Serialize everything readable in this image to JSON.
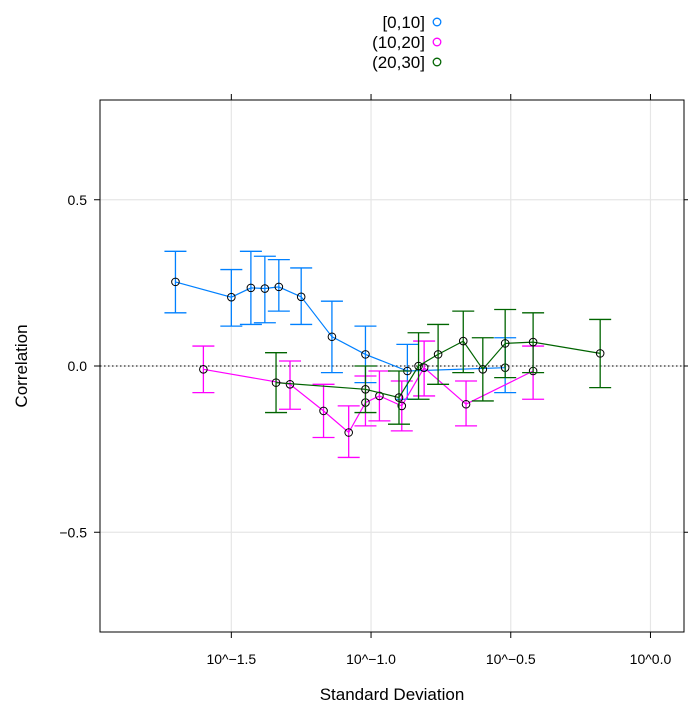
{
  "chart_data": {
    "type": "line",
    "title": "",
    "xlabel": "Standard Deviation",
    "ylabel": "Correlation",
    "x_scale": "log10",
    "xlim": [
      -1.97,
      0.12
    ],
    "ylim": [
      -0.8,
      0.8
    ],
    "x_ticks": [
      {
        "value": -1.5,
        "label": "10^−1.5"
      },
      {
        "value": -1.0,
        "label": "10^−1.0"
      },
      {
        "value": -0.5,
        "label": "10^−0.5"
      },
      {
        "value": 0.0,
        "label": "10^0.0"
      }
    ],
    "y_ticks": [
      {
        "value": -0.5,
        "label": "−0.5"
      },
      {
        "value": 0.0,
        "label": "0.0"
      },
      {
        "value": 0.5,
        "label": "0.5"
      }
    ],
    "grid": true,
    "reference_line": {
      "y": 0.0,
      "style": "dotted"
    },
    "legend": {
      "placement": "top-center",
      "marker": "open-circle"
    },
    "series": [
      {
        "name": "[0,10]",
        "color": "#0080ff",
        "points": [
          {
            "x": -1.7,
            "y": 0.253,
            "lo": 0.16,
            "hi": 0.345
          },
          {
            "x": -1.5,
            "y": 0.207,
            "lo": 0.12,
            "hi": 0.29
          },
          {
            "x": -1.43,
            "y": 0.235,
            "lo": 0.125,
            "hi": 0.345
          },
          {
            "x": -1.38,
            "y": 0.233,
            "lo": 0.13,
            "hi": 0.33
          },
          {
            "x": -1.33,
            "y": 0.238,
            "lo": 0.165,
            "hi": 0.32
          },
          {
            "x": -1.25,
            "y": 0.208,
            "lo": 0.125,
            "hi": 0.295
          },
          {
            "x": -1.14,
            "y": 0.088,
            "lo": -0.02,
            "hi": 0.195
          },
          {
            "x": -1.02,
            "y": 0.035,
            "lo": -0.05,
            "hi": 0.12
          },
          {
            "x": -0.87,
            "y": -0.015,
            "lo": -0.1,
            "hi": 0.065
          },
          {
            "x": -0.52,
            "y": -0.005,
            "lo": -0.08,
            "hi": 0.085
          }
        ]
      },
      {
        "name": "(10,20]",
        "color": "#ff00ff",
        "points": [
          {
            "x": -1.6,
            "y": -0.01,
            "lo": -0.08,
            "hi": 0.06
          },
          {
            "x": -1.29,
            "y": -0.055,
            "lo": -0.13,
            "hi": 0.015
          },
          {
            "x": -1.17,
            "y": -0.135,
            "lo": -0.215,
            "hi": -0.055
          },
          {
            "x": -1.08,
            "y": -0.2,
            "lo": -0.275,
            "hi": -0.12
          },
          {
            "x": -1.02,
            "y": -0.11,
            "lo": -0.18,
            "hi": -0.03
          },
          {
            "x": -0.97,
            "y": -0.09,
            "lo": -0.165,
            "hi": -0.015
          },
          {
            "x": -0.89,
            "y": -0.12,
            "lo": -0.195,
            "hi": -0.045
          },
          {
            "x": -0.81,
            "y": -0.005,
            "lo": -0.09,
            "hi": 0.075
          },
          {
            "x": -0.66,
            "y": -0.115,
            "lo": -0.18,
            "hi": -0.045
          },
          {
            "x": -0.42,
            "y": -0.015,
            "lo": -0.1,
            "hi": 0.06
          }
        ]
      },
      {
        "name": "(20,30]",
        "color": "#006400",
        "points": [
          {
            "x": -1.34,
            "y": -0.05,
            "lo": -0.14,
            "hi": 0.04
          },
          {
            "x": -1.02,
            "y": -0.07,
            "lo": -0.14,
            "hi": 0.0
          },
          {
            "x": -0.9,
            "y": -0.095,
            "lo": -0.175,
            "hi": -0.015
          },
          {
            "x": -0.83,
            "y": 0.0,
            "lo": -0.1,
            "hi": 0.1
          },
          {
            "x": -0.76,
            "y": 0.035,
            "lo": -0.055,
            "hi": 0.125
          },
          {
            "x": -0.67,
            "y": 0.075,
            "lo": -0.02,
            "hi": 0.165
          },
          {
            "x": -0.6,
            "y": -0.01,
            "lo": -0.105,
            "hi": 0.085
          },
          {
            "x": -0.52,
            "y": 0.068,
            "lo": -0.035,
            "hi": 0.17
          },
          {
            "x": -0.42,
            "y": 0.072,
            "lo": -0.02,
            "hi": 0.16
          },
          {
            "x": -0.18,
            "y": 0.038,
            "lo": -0.065,
            "hi": 0.14
          }
        ]
      }
    ]
  }
}
